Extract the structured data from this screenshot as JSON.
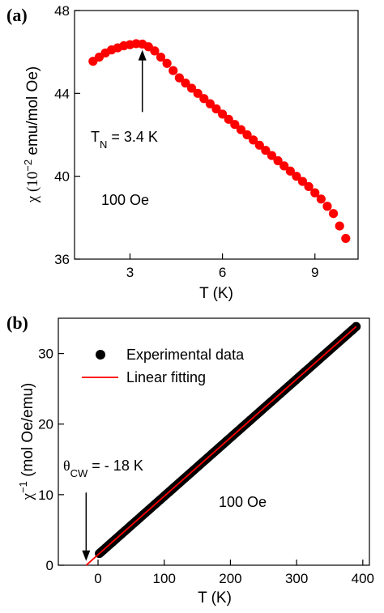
{
  "chart_data": [
    {
      "type": "scatter",
      "panel_label": "(a)",
      "xlabel": "T (K)",
      "ylabel_pre": "χ (10",
      "ylabel_exp": "−2",
      "ylabel_post": " emu/mol Oe)",
      "xlim": [
        1.2,
        10.4
      ],
      "ylim": [
        36,
        48
      ],
      "xticks": [
        3,
        6,
        9
      ],
      "yticks": [
        36,
        40,
        44,
        48
      ],
      "marker_color": "#ff0000",
      "series": [
        {
          "values_x": [
            1.8,
            2.0,
            2.2,
            2.4,
            2.6,
            2.8,
            3.0,
            3.2,
            3.4,
            3.6,
            3.8,
            4.0,
            4.2,
            4.4,
            4.6,
            4.8,
            5.0,
            5.2,
            5.4,
            5.6,
            5.8,
            6.0,
            6.2,
            6.4,
            6.6,
            6.8,
            7.0,
            7.2,
            7.4,
            7.6,
            7.8,
            8.0,
            8.2,
            8.4,
            8.6,
            8.8,
            9.0,
            9.2,
            9.4,
            9.6,
            9.8,
            10.0
          ],
          "values_y": [
            45.55,
            45.75,
            45.95,
            46.1,
            46.2,
            46.3,
            46.35,
            46.4,
            46.38,
            46.25,
            46.05,
            45.75,
            45.45,
            45.1,
            44.75,
            44.5,
            44.25,
            44.0,
            43.75,
            43.5,
            43.25,
            43.0,
            42.75,
            42.5,
            42.25,
            42.0,
            41.75,
            41.5,
            41.25,
            41.0,
            40.75,
            40.5,
            40.25,
            40.0,
            39.75,
            39.5,
            39.2,
            38.9,
            38.55,
            38.2,
            37.6,
            37.0
          ]
        }
      ],
      "annotations": [
        {
          "text_main": "T",
          "text_sub": "N",
          "text_rest": " = 3.4 K",
          "arrow_to_x": 3.4,
          "arrow_to_y": 46.1,
          "arrow_from_y": 43.1
        },
        {
          "text": "100 Oe",
          "x": 2.2,
          "y": 39.0
        }
      ]
    },
    {
      "type": "scatter",
      "panel_label": "(b)",
      "xlabel": "T (K)",
      "ylabel_pre": "χ",
      "ylabel_exp": "−1",
      "ylabel_post": " (mol Oe/emu)",
      "xlim": [
        -60,
        410
      ],
      "ylim": [
        0,
        35
      ],
      "xticks": [
        0,
        100,
        200,
        300,
        400
      ],
      "yticks": [
        0,
        10,
        20,
        30
      ],
      "legend": {
        "placement": "top-left",
        "entries": [
          {
            "label": "Experimental data",
            "kind": "marker",
            "color": "#000000"
          },
          {
            "label": "Linear fitting",
            "kind": "line",
            "color": "#ff0000"
          }
        ]
      },
      "series": [
        {
          "name": "Experimental data",
          "x_start": 2,
          "x_end": 390,
          "slope": 0.0829,
          "intercept": 1.49
        },
        {
          "name": "Linear fitting",
          "x_start": -18,
          "x_end": 390,
          "slope": 0.0829,
          "intercept": 1.49
        }
      ],
      "annotations": [
        {
          "text_main": "θ",
          "text_sub": "CW",
          "text_rest": " = - 18 K",
          "arrow_x": -18,
          "arrow_from_y": 10.3,
          "arrow_to_y": 0.6
        },
        {
          "text": "100 Oe",
          "x": 165,
          "y": 9.3
        }
      ]
    }
  ]
}
